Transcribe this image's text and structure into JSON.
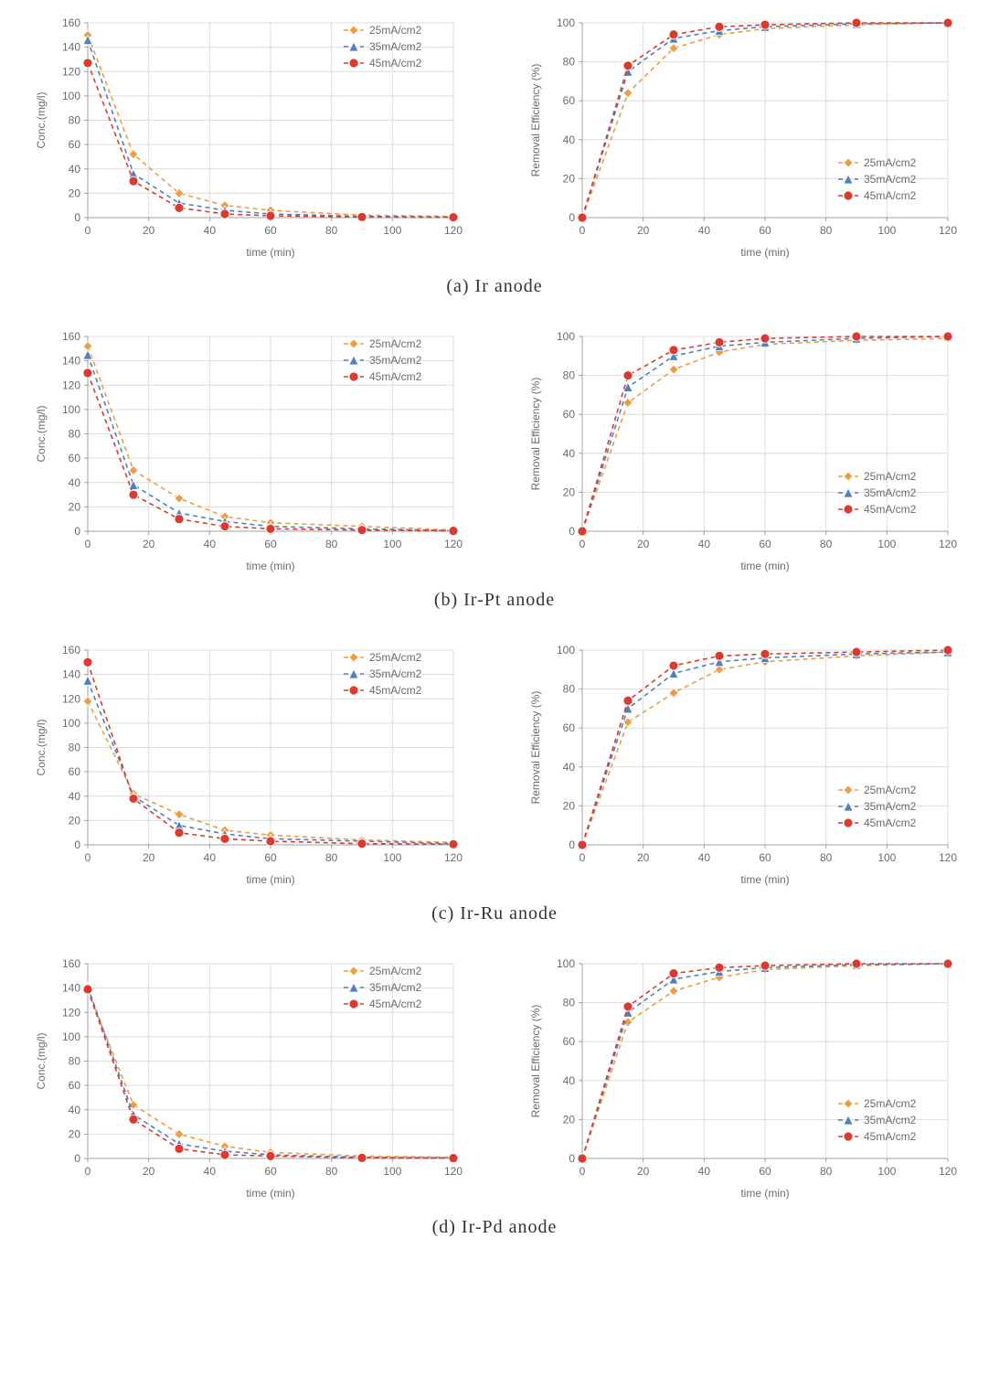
{
  "global": {
    "background_color": "#ffffff",
    "grid_color": "#dcdcdc",
    "axis_color": "#a0a0a0",
    "text_color": "#6b6b6b",
    "font_family": "Arial, sans-serif",
    "axis_fontsize": 12,
    "label_fontsize": 12,
    "legend_fontsize": 12,
    "linewidth": 1.6,
    "marker_size": 5
  },
  "series_styles": {
    "s25": {
      "label": "25mA/cm2",
      "color": "#ed9d42",
      "marker": "diamond"
    },
    "s35": {
      "label": "35mA/cm2",
      "color": "#4f81bd",
      "marker": "triangle"
    },
    "s45": {
      "label": "45mA/cm2",
      "color": "#da3a2f",
      "marker": "circle"
    }
  },
  "x_axis": {
    "label": "time (min)",
    "lim": [
      0,
      120
    ],
    "step": 20,
    "ticks": [
      0,
      20,
      40,
      60,
      80,
      100,
      120
    ]
  },
  "conc_axis": {
    "label": "Conc.(mg/l)",
    "lim": [
      0,
      160
    ],
    "step": 20,
    "ticks": [
      0,
      20,
      40,
      60,
      80,
      100,
      120,
      140,
      160
    ]
  },
  "eff_axis": {
    "label": "Removal Efficiency (%)",
    "lim": [
      0,
      100
    ],
    "step": 20,
    "ticks": [
      0,
      20,
      40,
      60,
      80,
      100
    ]
  },
  "x_values": [
    0,
    15,
    30,
    45,
    60,
    90,
    120
  ],
  "panels": [
    {
      "caption": "(a) Ir anode",
      "conc": {
        "s25": [
          150,
          52,
          20,
          10,
          6,
          2,
          1
        ],
        "s35": [
          146,
          36,
          12,
          6,
          3,
          1,
          0.5
        ],
        "s45": [
          127,
          30,
          8,
          3,
          1.5,
          0.5,
          0.3
        ]
      },
      "eff": {
        "s25": [
          0,
          64,
          87,
          94,
          97,
          99,
          100
        ],
        "s35": [
          0,
          75,
          92,
          96,
          98,
          99.5,
          100
        ],
        "s45": [
          0,
          78,
          94,
          98,
          99,
          100,
          100
        ]
      },
      "conc_legend_pos": "top-right",
      "eff_legend_pos": "bottom-right"
    },
    {
      "caption": "(b) Ir-Pt anode",
      "conc": {
        "s25": [
          152,
          50,
          27,
          12,
          7,
          4,
          1
        ],
        "s35": [
          145,
          38,
          15,
          8,
          4,
          2,
          0.5
        ],
        "s45": [
          130,
          30,
          10,
          4,
          2,
          1,
          0.3
        ]
      },
      "eff": {
        "s25": [
          0,
          66,
          83,
          92,
          96,
          98,
          99
        ],
        "s35": [
          0,
          74,
          90,
          95,
          97,
          99,
          100
        ],
        "s45": [
          0,
          80,
          93,
          97,
          99,
          100,
          100
        ]
      },
      "conc_legend_pos": "top-right",
      "eff_legend_pos": "bottom-right"
    },
    {
      "caption": "(c) Ir-Ru anode",
      "conc": {
        "s25": [
          118,
          42,
          25,
          12,
          8,
          4,
          2
        ],
        "s35": [
          135,
          40,
          16,
          9,
          5,
          3,
          1
        ],
        "s45": [
          150,
          38,
          10,
          5,
          3,
          1,
          0.5
        ]
      },
      "eff": {
        "s25": [
          0,
          63,
          78,
          90,
          94,
          97,
          99
        ],
        "s35": [
          0,
          70,
          88,
          94,
          96,
          98,
          99
        ],
        "s45": [
          0,
          74,
          92,
          97,
          98,
          99,
          100
        ]
      },
      "conc_legend_pos": "top-right",
      "eff_legend_pos": "bottom-right"
    },
    {
      "caption": "(d) Ir-Pd anode",
      "conc": {
        "s25": [
          138,
          44,
          20,
          10,
          5,
          2,
          1
        ],
        "s35": [
          141,
          36,
          12,
          6,
          3,
          1,
          0.5
        ],
        "s45": [
          139,
          32,
          8,
          3,
          2,
          0.5,
          0.3
        ]
      },
      "eff": {
        "s25": [
          0,
          70,
          86,
          93,
          97,
          99,
          100
        ],
        "s35": [
          0,
          75,
          92,
          96,
          98,
          99.5,
          100
        ],
        "s45": [
          0,
          78,
          95,
          98,
          99,
          100,
          100
        ]
      },
      "conc_legend_pos": "top-right",
      "eff_legend_pos": "bottom-right"
    }
  ]
}
